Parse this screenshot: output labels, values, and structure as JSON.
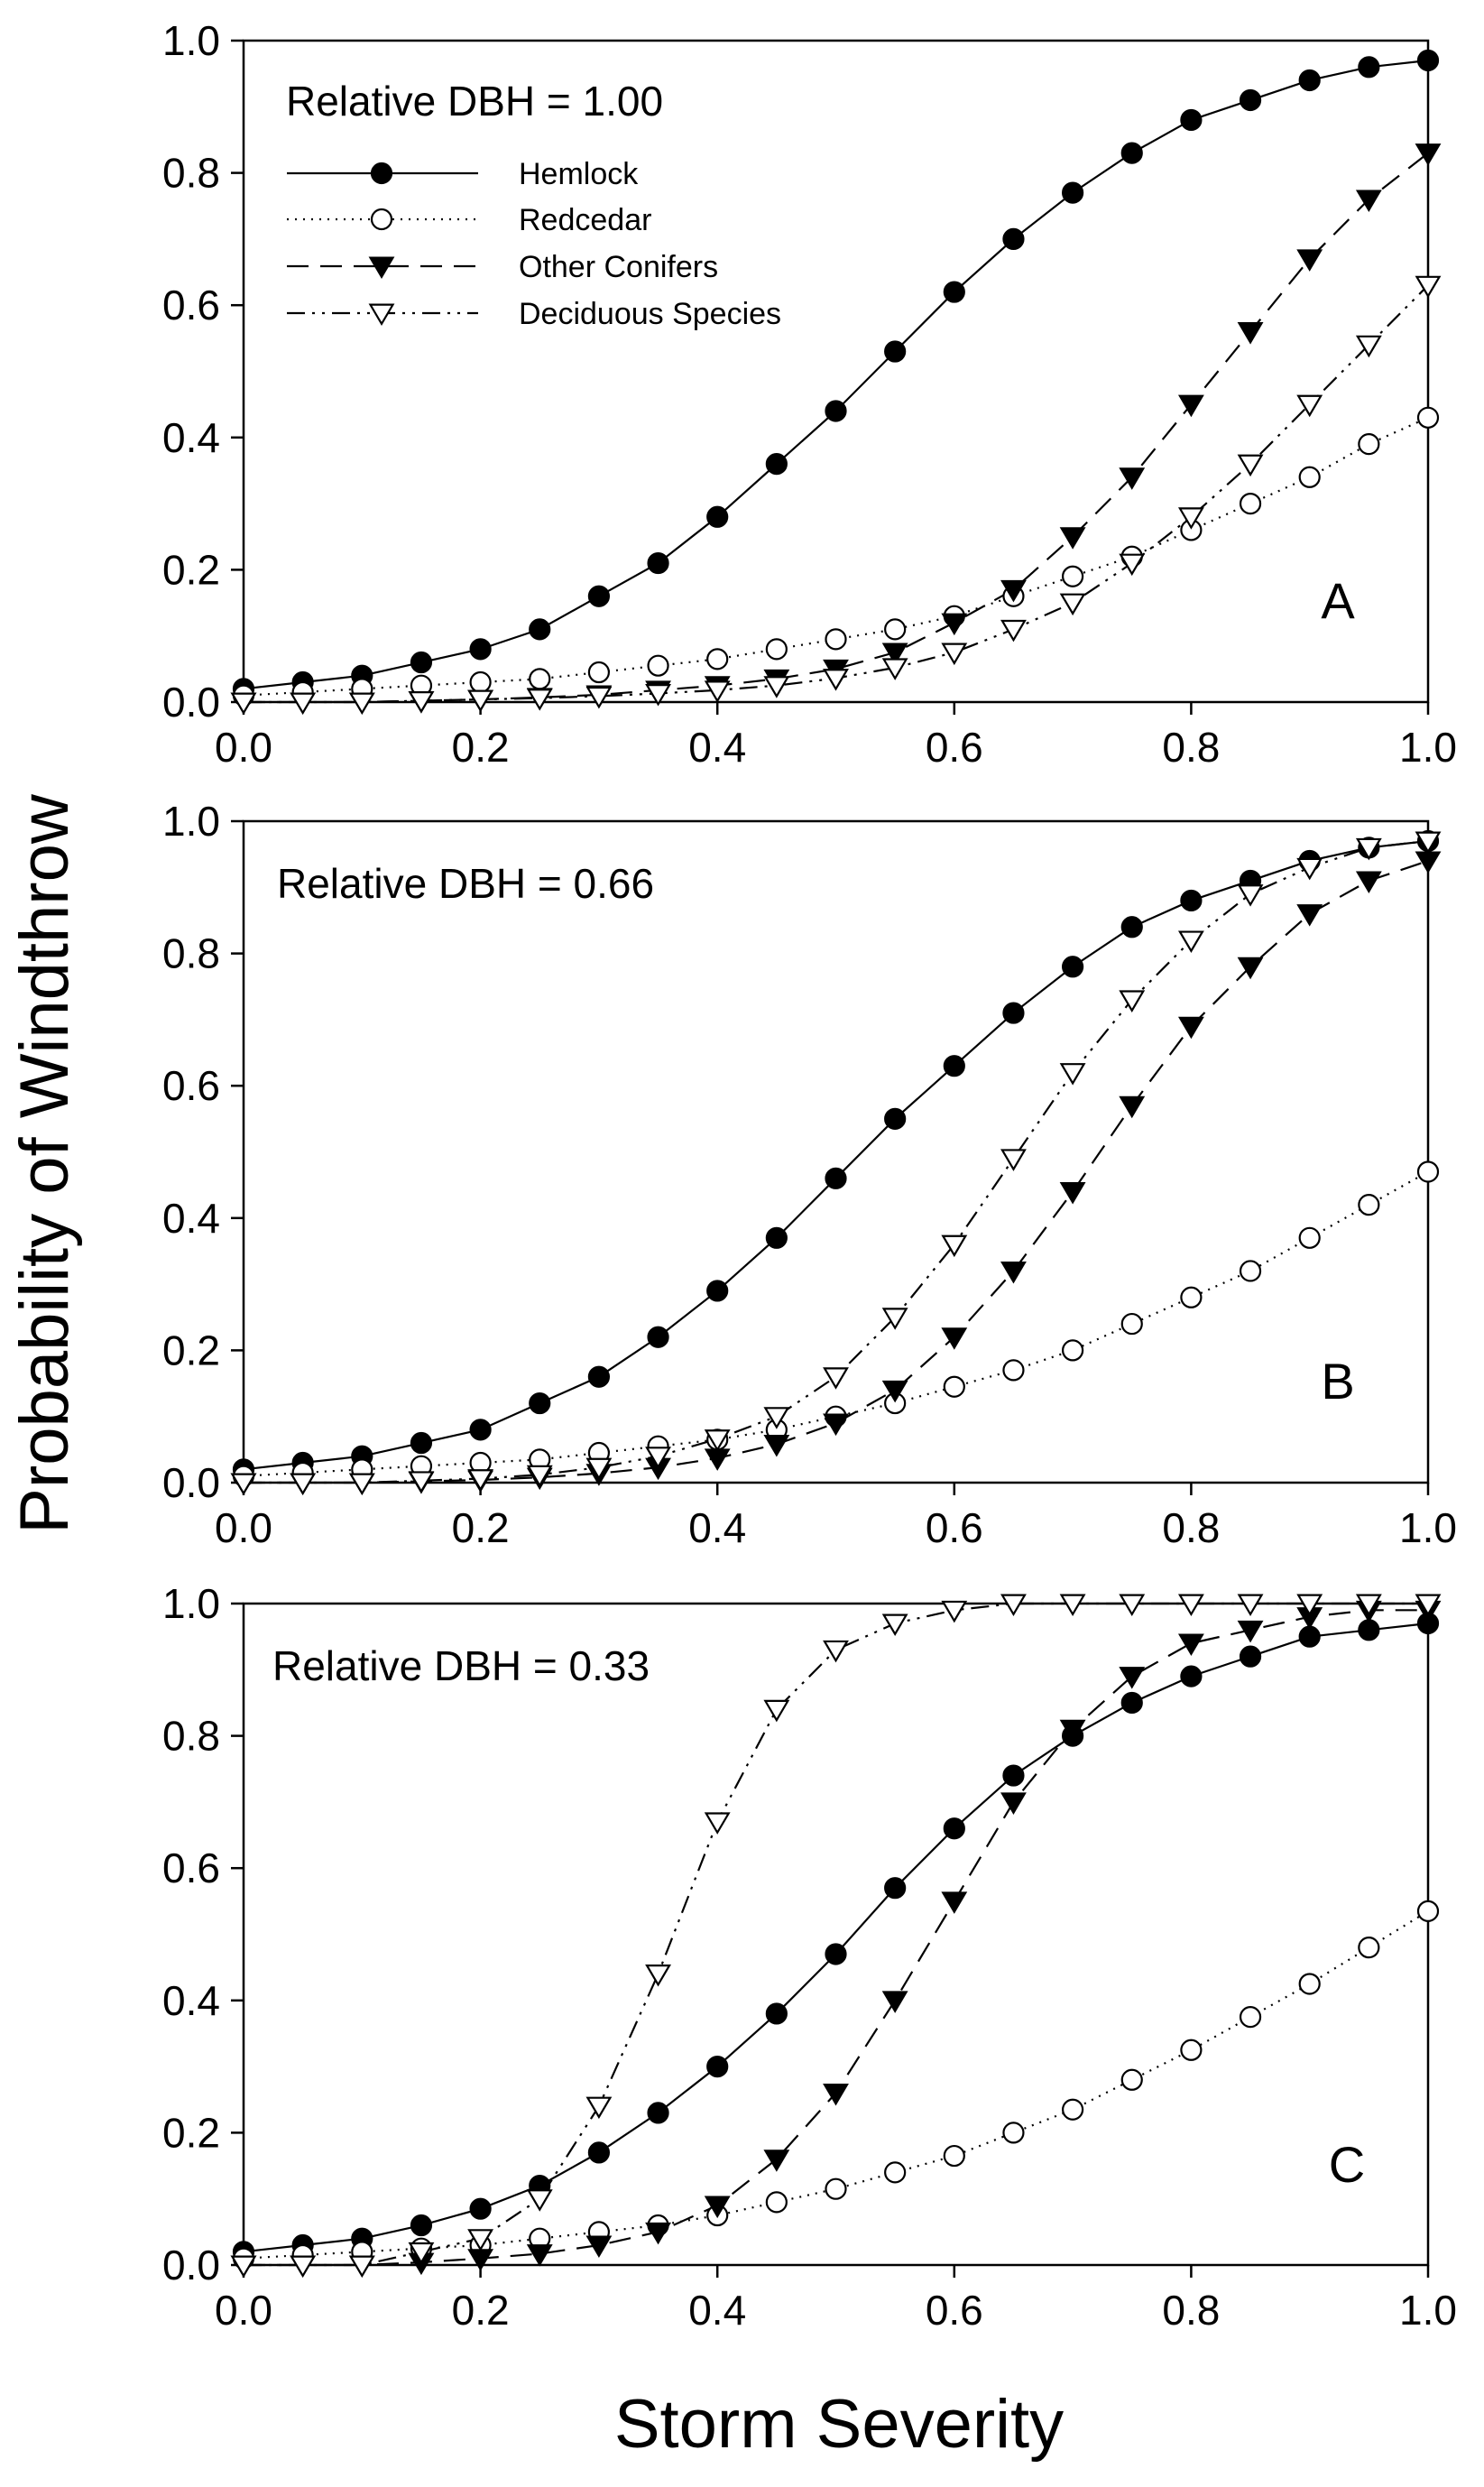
{
  "figure": {
    "ylabel": "Probability of Windthrow",
    "xlabel": "Storm Severity"
  },
  "legend": [
    {
      "name": "Hemlock"
    },
    {
      "name": "Redcedar"
    },
    {
      "name": "Other Conifers"
    },
    {
      "name": "Deciduous Species"
    }
  ],
  "chart_data": [
    {
      "type": "line",
      "panel": "A",
      "title": "Relative DBH = 1.00",
      "xlabel": "Storm Severity",
      "ylabel": "Probability of Windthrow",
      "xlim": [
        0,
        1
      ],
      "ylim": [
        0,
        1
      ],
      "xticks": [
        "0.0",
        "0.2",
        "0.4",
        "0.6",
        "0.8",
        "1.0"
      ],
      "yticks": [
        "0.0",
        "0.2",
        "0.4",
        "0.6",
        "0.8",
        "1.0"
      ],
      "x": [
        0,
        0.05,
        0.1,
        0.15,
        0.2,
        0.25,
        0.3,
        0.35,
        0.4,
        0.45,
        0.5,
        0.55,
        0.6,
        0.65,
        0.7,
        0.75,
        0.8,
        0.85,
        0.9,
        0.95,
        1.0
      ],
      "series": [
        {
          "name": "Hemlock",
          "values": [
            0.02,
            0.03,
            0.04,
            0.06,
            0.08,
            0.11,
            0.16,
            0.21,
            0.28,
            0.36,
            0.44,
            0.53,
            0.62,
            0.7,
            0.77,
            0.83,
            0.88,
            0.91,
            0.94,
            0.96,
            0.97
          ]
        },
        {
          "name": "Redcedar",
          "values": [
            0.01,
            0.015,
            0.02,
            0.025,
            0.03,
            0.035,
            0.045,
            0.055,
            0.065,
            0.08,
            0.095,
            0.11,
            0.13,
            0.16,
            0.19,
            0.22,
            0.26,
            0.3,
            0.34,
            0.39,
            0.43
          ]
        },
        {
          "name": "Other Conifers",
          "values": [
            0.0,
            0.0,
            0.0,
            0.002,
            0.004,
            0.007,
            0.011,
            0.018,
            0.025,
            0.035,
            0.05,
            0.075,
            0.12,
            0.17,
            0.25,
            0.34,
            0.45,
            0.56,
            0.67,
            0.76,
            0.83
          ]
        },
        {
          "name": "Deciduous Species",
          "values": [
            0.0,
            0.0,
            0.0,
            0.002,
            0.004,
            0.006,
            0.009,
            0.013,
            0.018,
            0.025,
            0.036,
            0.052,
            0.075,
            0.11,
            0.15,
            0.21,
            0.28,
            0.36,
            0.45,
            0.54,
            0.63
          ]
        }
      ]
    },
    {
      "type": "line",
      "panel": "B",
      "title": "Relative DBH = 0.66",
      "xlabel": "Storm Severity",
      "ylabel": "Probability of Windthrow",
      "xlim": [
        0,
        1
      ],
      "ylim": [
        0,
        1
      ],
      "xticks": [
        "0.0",
        "0.2",
        "0.4",
        "0.6",
        "0.8",
        "1.0"
      ],
      "yticks": [
        "0.0",
        "0.2",
        "0.4",
        "0.6",
        "0.8",
        "1.0"
      ],
      "x": [
        0,
        0.05,
        0.1,
        0.15,
        0.2,
        0.25,
        0.3,
        0.35,
        0.4,
        0.45,
        0.5,
        0.55,
        0.6,
        0.65,
        0.7,
        0.75,
        0.8,
        0.85,
        0.9,
        0.95,
        1.0
      ],
      "series": [
        {
          "name": "Hemlock",
          "values": [
            0.02,
            0.03,
            0.04,
            0.06,
            0.08,
            0.12,
            0.16,
            0.22,
            0.29,
            0.37,
            0.46,
            0.55,
            0.63,
            0.71,
            0.78,
            0.84,
            0.88,
            0.91,
            0.94,
            0.96,
            0.97
          ]
        },
        {
          "name": "Redcedar",
          "values": [
            0.01,
            0.015,
            0.02,
            0.025,
            0.03,
            0.035,
            0.045,
            0.055,
            0.065,
            0.08,
            0.1,
            0.12,
            0.145,
            0.17,
            0.2,
            0.24,
            0.28,
            0.32,
            0.37,
            0.42,
            0.47
          ]
        },
        {
          "name": "Other Conifers",
          "values": [
            0.0,
            0.0,
            0.0,
            0.002,
            0.004,
            0.008,
            0.014,
            0.023,
            0.037,
            0.058,
            0.09,
            0.14,
            0.22,
            0.32,
            0.44,
            0.57,
            0.69,
            0.78,
            0.86,
            0.91,
            0.94
          ]
        },
        {
          "name": "Deciduous Species",
          "values": [
            0.0,
            0.0,
            0.0,
            0.003,
            0.006,
            0.012,
            0.023,
            0.04,
            0.066,
            0.1,
            0.16,
            0.25,
            0.36,
            0.49,
            0.62,
            0.73,
            0.82,
            0.89,
            0.93,
            0.96,
            0.97
          ]
        }
      ]
    },
    {
      "type": "line",
      "panel": "C",
      "title": "Relative DBH = 0.33",
      "xlabel": "Storm Severity",
      "ylabel": "Probability of Windthrow",
      "xlim": [
        0,
        1
      ],
      "ylim": [
        0,
        1
      ],
      "xticks": [
        "0.0",
        "0.2",
        "0.4",
        "0.6",
        "0.8",
        "1.0"
      ],
      "yticks": [
        "0.0",
        "0.2",
        "0.4",
        "0.6",
        "0.8",
        "1.0"
      ],
      "x": [
        0,
        0.05,
        0.1,
        0.15,
        0.2,
        0.25,
        0.3,
        0.35,
        0.4,
        0.45,
        0.5,
        0.55,
        0.6,
        0.65,
        0.7,
        0.75,
        0.8,
        0.85,
        0.9,
        0.95,
        1.0
      ],
      "series": [
        {
          "name": "Hemlock",
          "values": [
            0.02,
            0.03,
            0.04,
            0.06,
            0.085,
            0.12,
            0.17,
            0.23,
            0.3,
            0.38,
            0.47,
            0.57,
            0.66,
            0.74,
            0.8,
            0.85,
            0.89,
            0.92,
            0.95,
            0.96,
            0.97
          ]
        },
        {
          "name": "Redcedar",
          "values": [
            0.01,
            0.015,
            0.02,
            0.025,
            0.03,
            0.04,
            0.05,
            0.06,
            0.075,
            0.095,
            0.115,
            0.14,
            0.165,
            0.2,
            0.235,
            0.28,
            0.325,
            0.375,
            0.425,
            0.48,
            0.535
          ]
        },
        {
          "name": "Other Conifers",
          "values": [
            0.0,
            0.0,
            0.0,
            0.004,
            0.01,
            0.017,
            0.03,
            0.05,
            0.09,
            0.16,
            0.26,
            0.4,
            0.55,
            0.7,
            0.81,
            0.89,
            0.94,
            0.96,
            0.98,
            0.99,
            0.99
          ]
        },
        {
          "name": "Deciduous Species",
          "values": [
            0.0,
            0.0,
            0.0,
            0.02,
            0.04,
            0.1,
            0.24,
            0.44,
            0.67,
            0.84,
            0.93,
            0.97,
            0.99,
            1.0,
            1.0,
            1.0,
            1.0,
            1.0,
            1.0,
            1.0,
            1.0
          ]
        }
      ]
    }
  ]
}
